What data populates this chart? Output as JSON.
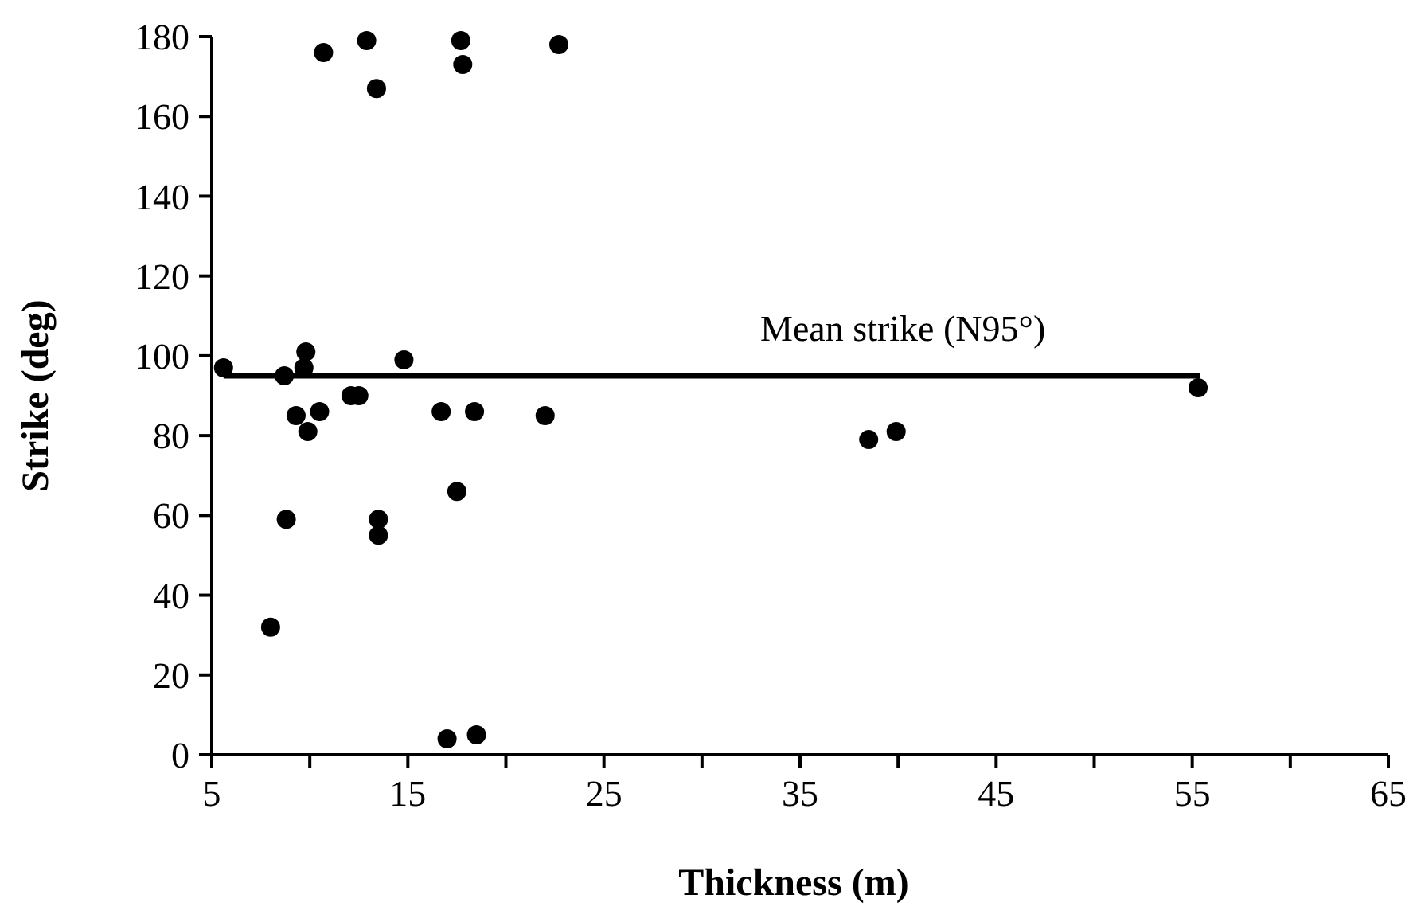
{
  "chart_data": {
    "type": "scatter",
    "xlabel": "Thickness (m)",
    "ylabel": "Strike (deg)",
    "xlim": [
      5,
      65
    ],
    "xticks": [
      5,
      {
        "value": 10,
        "label": null
      },
      15,
      {
        "value": 20,
        "label": null
      },
      25,
      {
        "value": 30,
        "label": null
      },
      35,
      {
        "value": 40,
        "label": null
      },
      45,
      {
        "value": 50,
        "label": null
      },
      55,
      {
        "value": 60,
        "label": null
      },
      65
    ],
    "ylim": [
      0,
      180
    ],
    "yticks": [
      0,
      20,
      40,
      60,
      80,
      100,
      120,
      140,
      160,
      180
    ],
    "grid": false,
    "marker": "circle",
    "series": [
      {
        "color": "#000000",
        "x": [
          5.6,
          10.7,
          12.9,
          13.4,
          17.7,
          17.8,
          22.7,
          9.8,
          9.7,
          8.7,
          14.8,
          12.1,
          12.5,
          9.3,
          10.5,
          9.9,
          16.7,
          18.4,
          22.0,
          17.5,
          8.8,
          13.5,
          13.5,
          8.0,
          17.0,
          18.5,
          38.5,
          39.9,
          55.3
        ],
        "values": [
          97,
          176,
          179,
          167,
          179,
          173,
          178,
          101,
          97,
          95,
          99,
          90,
          90,
          85,
          86,
          81,
          86,
          86,
          85,
          66,
          59,
          59,
          55,
          32,
          4,
          5,
          79,
          81,
          92
        ]
      },
      {
        "type": "line",
        "name": "Mean strike (N95°)",
        "color": "#000000",
        "marker": "none",
        "line_style": "solid",
        "x": [
          5.6,
          55.4
        ],
        "values": [
          95,
          95
        ]
      }
    ]
  }
}
